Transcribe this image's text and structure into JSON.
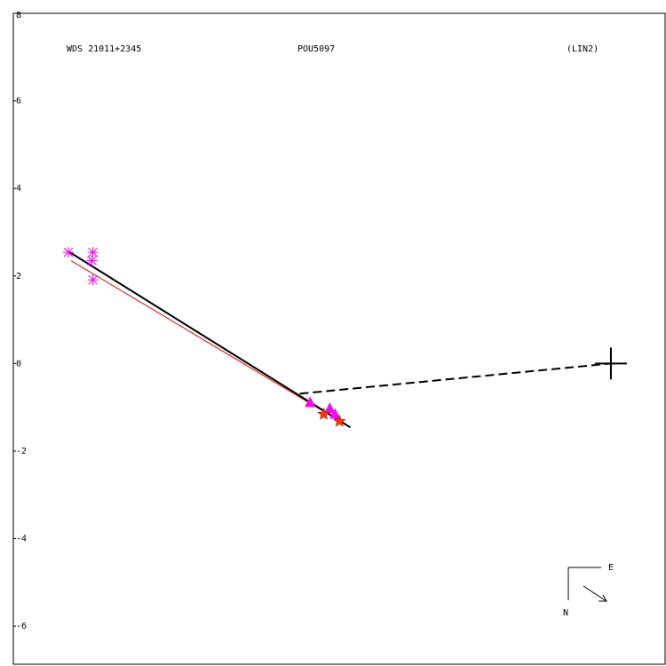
{
  "chart_data": {
    "type": "scatter",
    "title": "WDS 21011+2345",
    "subtitle": "POU5097",
    "annotation": "(LIN2)",
    "compass": {
      "east": "E",
      "north": "N"
    },
    "xlim": [
      -13.67,
      1.24
    ],
    "ylim": [
      -6.87,
      8
    ],
    "yticks": [
      8,
      6,
      4,
      2,
      0,
      -2,
      -4,
      -6
    ],
    "center": {
      "x": 0,
      "y": 0
    },
    "series": [
      {
        "marker": "asterisk",
        "color": "#ff00ff",
        "x": [
          -12.41,
          -11.85,
          -11.87,
          -11.85
        ],
        "y": [
          2.54,
          2.54,
          2.35,
          1.91
        ]
      },
      {
        "marker": "triangle",
        "color": "#ff00ff",
        "x": [
          -6.88,
          -6.43,
          -6.31
        ],
        "y": [
          -0.89,
          -1.03,
          -1.16
        ]
      },
      {
        "marker": "star",
        "color": "#ff3300",
        "x": [
          -6.57,
          -6.21
        ],
        "y": [
          -1.16,
          -1.32
        ]
      }
    ],
    "lines": [
      {
        "color": "#ff0000",
        "style": "solid",
        "x": [
          -12.35,
          -6.06
        ],
        "y": [
          2.35,
          -1.4
        ]
      },
      {
        "color": "#000000",
        "style": "solid",
        "x": [
          -12.41,
          -5.96
        ],
        "y": [
          2.56,
          -1.46
        ]
      },
      {
        "color": "#000000",
        "style": "dashed",
        "x": [
          -7.12,
          0
        ],
        "y": [
          -0.69,
          0
        ]
      }
    ]
  }
}
